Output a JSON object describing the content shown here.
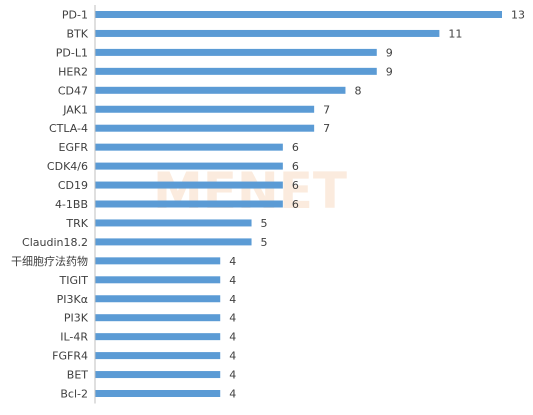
{
  "chart_data": {
    "type": "bar",
    "orientation": "horizontal",
    "categories": [
      "PD-1",
      "BTK",
      "PD-L1",
      "HER2",
      "CD47",
      "JAK1",
      "CTLA-4",
      "EGFR",
      "CDK4/6",
      "CD19",
      "4-1BB",
      "TRK",
      "Claudin18.2",
      "干细胞疗法药物",
      "TIGIT",
      "PI3Kα",
      "PI3K",
      "IL-4R",
      "FGFR4",
      "BET",
      "Bcl-2"
    ],
    "values": [
      13,
      11,
      9,
      9,
      8,
      7,
      7,
      6,
      6,
      6,
      6,
      5,
      5,
      4,
      4,
      4,
      4,
      4,
      4,
      4,
      4
    ],
    "xlim": [
      0,
      13
    ],
    "grid": false,
    "legend": "none",
    "bar_color": "#5b9bd5",
    "axis_color": "#bfbfbf"
  },
  "watermark": {
    "text": "MENET",
    "color": "#f3b98a"
  }
}
